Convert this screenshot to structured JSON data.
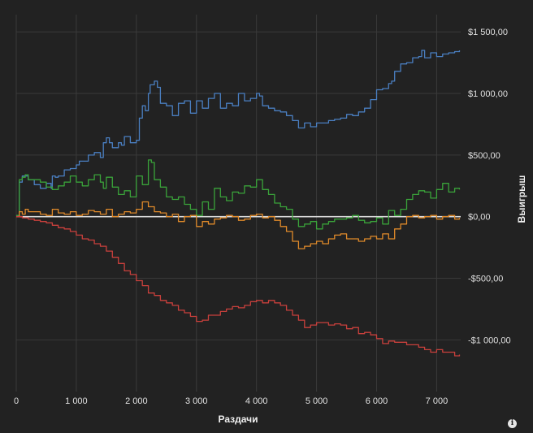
{
  "chart_data": {
    "type": "line",
    "title": "",
    "xlabel": "Раздачи",
    "ylabel": "Выигрыш",
    "xlim": [
      0,
      7400
    ],
    "ylim": [
      -1420,
      1640
    ],
    "x_ticks": [
      0,
      1000,
      2000,
      3000,
      4000,
      5000,
      6000,
      7000
    ],
    "x_tick_labels": [
      "0",
      "1 000",
      "2 000",
      "3 000",
      "4 000",
      "5 000",
      "6 000",
      "7 000"
    ],
    "y_ticks": [
      1500,
      1000,
      500,
      0,
      -500,
      -1000
    ],
    "y_tick_labels": [
      "$1 500,00",
      "$1 000,00",
      "$500,00",
      "$0,00",
      "-$500,00",
      "-$1 000,00"
    ],
    "grid": true,
    "axis_side_y": "right",
    "legend": "none",
    "zero_line_color": "#d8d8d8",
    "series": [
      {
        "color": "#4a7fc1",
        "x": [
          0,
          50,
          100,
          200,
          300,
          400,
          500,
          580,
          600,
          650,
          700,
          800,
          900,
          1000,
          1050,
          1100,
          1200,
          1300,
          1400,
          1450,
          1500,
          1550,
          1600,
          1700,
          1750,
          1800,
          1900,
          2000,
          2050,
          2100,
          2150,
          2200,
          2230,
          2300,
          2350,
          2400,
          2500,
          2600,
          2700,
          2800,
          2900,
          3000,
          3100,
          3200,
          3300,
          3400,
          3500,
          3600,
          3700,
          3800,
          3900,
          4000,
          4050,
          4100,
          4200,
          4300,
          4400,
          4500,
          4600,
          4700,
          4800,
          4900,
          5000,
          5100,
          5200,
          5300,
          5400,
          5500,
          5600,
          5700,
          5800,
          5900,
          6000,
          6100,
          6200,
          6250,
          6300,
          6400,
          6500,
          6600,
          6700,
          6750,
          6800,
          6900,
          7000,
          7100,
          7200,
          7300,
          7380
        ],
        "y": [
          10,
          280,
          330,
          300,
          260,
          230,
          270,
          230,
          330,
          320,
          330,
          380,
          390,
          420,
          450,
          450,
          500,
          520,
          480,
          600,
          640,
          600,
          560,
          600,
          580,
          650,
          600,
          620,
          800,
          900,
          860,
          1000,
          1070,
          1100,
          1050,
          920,
          900,
          820,
          920,
          940,
          840,
          940,
          880,
          960,
          1000,
          880,
          920,
          900,
          1000,
          940,
          960,
          1000,
          980,
          900,
          880,
          860,
          850,
          820,
          780,
          720,
          760,
          730,
          760,
          760,
          780,
          790,
          800,
          830,
          820,
          850,
          880,
          950,
          1030,
          1040,
          1080,
          1100,
          1180,
          1240,
          1250,
          1290,
          1300,
          1350,
          1290,
          1330,
          1300,
          1320,
          1330,
          1340,
          1350
        ]
      },
      {
        "color": "#3aa33a",
        "x": [
          0,
          50,
          100,
          150,
          200,
          300,
          400,
          500,
          600,
          700,
          800,
          900,
          1000,
          1100,
          1200,
          1300,
          1400,
          1450,
          1500,
          1600,
          1700,
          1800,
          1900,
          2000,
          2100,
          2200,
          2250,
          2300,
          2400,
          2500,
          2600,
          2700,
          2800,
          2900,
          3000,
          3100,
          3200,
          3300,
          3400,
          3500,
          3600,
          3700,
          3800,
          3900,
          4000,
          4100,
          4200,
          4300,
          4400,
          4500,
          4600,
          4700,
          4800,
          4900,
          5000,
          5100,
          5200,
          5300,
          5400,
          5500,
          5600,
          5700,
          5800,
          5900,
          6000,
          6100,
          6200,
          6300,
          6400,
          6500,
          6600,
          6700,
          6800,
          6900,
          7000,
          7100,
          7200,
          7300,
          7380
        ],
        "y": [
          10,
          300,
          320,
          340,
          300,
          300,
          280,
          240,
          220,
          250,
          280,
          330,
          280,
          250,
          300,
          340,
          280,
          230,
          320,
          240,
          180,
          210,
          160,
          330,
          260,
          460,
          440,
          300,
          240,
          160,
          140,
          160,
          100,
          60,
          10,
          120,
          60,
          230,
          160,
          130,
          200,
          190,
          250,
          240,
          300,
          220,
          180,
          110,
          80,
          60,
          -20,
          -80,
          -60,
          -40,
          -100,
          -60,
          -40,
          -20,
          -20,
          -10,
          10,
          -30,
          -50,
          -40,
          -10,
          -60,
          50,
          10,
          60,
          140,
          180,
          210,
          200,
          150,
          220,
          270,
          200,
          230,
          220
        ]
      },
      {
        "color": "#e08a2a",
        "x": [
          0,
          50,
          100,
          150,
          200,
          300,
          400,
          500,
          600,
          700,
          800,
          900,
          1000,
          1100,
          1200,
          1300,
          1400,
          1500,
          1600,
          1700,
          1800,
          1900,
          2000,
          2100,
          2200,
          2300,
          2400,
          2500,
          2600,
          2700,
          2800,
          2900,
          3000,
          3100,
          3200,
          3300,
          3400,
          3500,
          3600,
          3700,
          3800,
          3900,
          4000,
          4100,
          4200,
          4300,
          4400,
          4500,
          4600,
          4700,
          4800,
          4900,
          5000,
          5100,
          5200,
          5300,
          5400,
          5500,
          5600,
          5700,
          5800,
          5900,
          6000,
          6100,
          6200,
          6300,
          6400,
          6500,
          6600,
          6700,
          6800,
          6900,
          7000,
          7100,
          7200,
          7300,
          7380
        ],
        "y": [
          0,
          40,
          20,
          60,
          40,
          40,
          20,
          10,
          60,
          30,
          20,
          40,
          10,
          20,
          50,
          40,
          20,
          60,
          0,
          20,
          40,
          30,
          60,
          120,
          80,
          40,
          30,
          0,
          20,
          -40,
          0,
          10,
          -80,
          -40,
          -60,
          -20,
          -10,
          10,
          0,
          -30,
          -20,
          10,
          20,
          -10,
          0,
          -30,
          -80,
          -120,
          -200,
          -260,
          -240,
          -220,
          -200,
          -220,
          -180,
          -150,
          -140,
          -180,
          -180,
          -200,
          -180,
          -160,
          -180,
          -140,
          -180,
          -100,
          -60,
          0,
          10,
          -10,
          0,
          10,
          -20,
          0,
          10,
          -20,
          -10
        ]
      },
      {
        "color": "#c9403c",
        "x": [
          0,
          100,
          200,
          300,
          400,
          500,
          600,
          700,
          800,
          900,
          1000,
          1100,
          1200,
          1300,
          1400,
          1500,
          1600,
          1700,
          1800,
          1900,
          2000,
          2100,
          2200,
          2300,
          2400,
          2500,
          2600,
          2700,
          2800,
          2900,
          3000,
          3100,
          3200,
          3300,
          3400,
          3500,
          3600,
          3700,
          3800,
          3900,
          4000,
          4100,
          4200,
          4300,
          4400,
          4500,
          4600,
          4700,
          4800,
          4900,
          5000,
          5100,
          5200,
          5300,
          5400,
          5500,
          5600,
          5700,
          5800,
          5900,
          6000,
          6100,
          6200,
          6300,
          6400,
          6500,
          6600,
          6700,
          6800,
          6900,
          7000,
          7100,
          7200,
          7300,
          7380
        ],
        "y": [
          0,
          -10,
          -20,
          -30,
          -40,
          -50,
          -70,
          -90,
          -100,
          -120,
          -150,
          -180,
          -190,
          -220,
          -240,
          -280,
          -330,
          -380,
          -440,
          -470,
          -520,
          -560,
          -620,
          -640,
          -680,
          -700,
          -720,
          -760,
          -780,
          -810,
          -850,
          -840,
          -800,
          -800,
          -770,
          -750,
          -730,
          -740,
          -720,
          -690,
          -680,
          -700,
          -680,
          -700,
          -720,
          -760,
          -800,
          -840,
          -900,
          -880,
          -860,
          -860,
          -880,
          -870,
          -880,
          -910,
          -900,
          -950,
          -940,
          -960,
          -990,
          -1030,
          -1010,
          -1020,
          -1020,
          -1040,
          -1040,
          -1060,
          -1080,
          -1100,
          -1080,
          -1100,
          -1100,
          -1130,
          -1120
        ]
      }
    ]
  },
  "ui": {
    "info_glyph": "i"
  }
}
